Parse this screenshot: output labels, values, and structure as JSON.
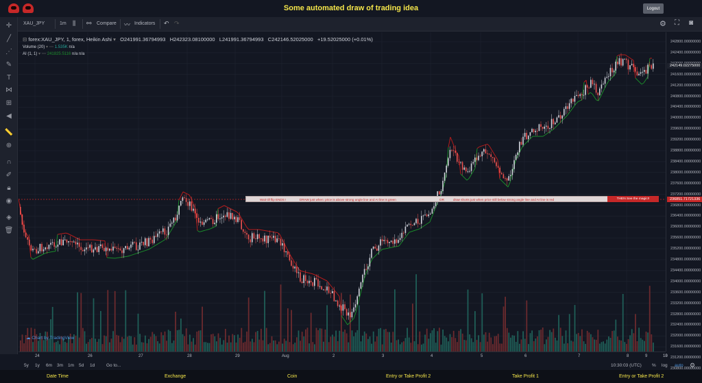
{
  "header": {
    "title": "Some automated draw of trading idea",
    "logout_label": "Logout",
    "logo_icons": [
      "ninja-mask-icon",
      "ninja-mask-icon"
    ]
  },
  "toolbar": {
    "symbol": "XAU_JPY",
    "interval": "1m",
    "compare_label": "Compare",
    "indicators_label": "Indicators"
  },
  "legend": {
    "main_title": "forex:XAU_JPY, 1, forex, Heikin Ashi",
    "open": "O241991.36794993",
    "high": "H242323.08100000",
    "low": "L241991.36794993",
    "close": "C242146.52025000",
    "change": "+19.52025000 (+0.01%)",
    "volume_label": "Volume (20)",
    "volume_value": "1.535K",
    "volume_na": "n/a",
    "ai_label": "AI (1, 1)",
    "ai_value": "241825.5116",
    "ai_na1": "n/a",
    "ai_na2": "n/a"
  },
  "annotation": {
    "part1": "Wait till flip ENDS  !",
    "part2": "DRAW just when:  price is above strong angle line and AI line is green",
    "part3": "OR",
    "part4": "draw shorts just when price still below strong angle line and AI line is red",
    "magic": "THEN See the magic!!"
  },
  "price_axis": {
    "ticks": [
      "242800.00000000",
      "242400.00000000",
      "242000.00000000",
      "241600.00000000",
      "241200.00000000",
      "240800.00000000",
      "240400.00000000",
      "240000.00000000",
      "239600.00000000",
      "239200.00000000",
      "238800.00000000",
      "238400.00000000",
      "238000.00000000",
      "237600.00000000",
      "237200.00000000",
      "236800.00000000",
      "236400.00000000",
      "236000.00000000",
      "235600.00000000",
      "235200.00000000",
      "234800.00000000",
      "234400.00000000",
      "234000.00000000",
      "233600.00000000",
      "233200.00000000",
      "232800.00000000",
      "232400.00000000",
      "232000.00000000",
      "231600.00000000",
      "231200.00000000",
      "230800.00000000"
    ],
    "current_price": "242149.02275000",
    "line_price": "236851.71721336"
  },
  "time_axis": {
    "ticks": [
      "24",
      "26",
      "27",
      "28",
      "29",
      "Aug",
      "2",
      "3",
      "4",
      "5",
      "6",
      "7",
      "8",
      "9",
      "10",
      "13"
    ]
  },
  "watermark": "Chart by TradingView",
  "bottom_toolbar": {
    "ranges": [
      "5y",
      "1y",
      "6m",
      "3m",
      "1m",
      "5d",
      "1d"
    ],
    "goto": "Go to...",
    "time": "10:30:03 (UTC)",
    "percent": "%",
    "log": "log",
    "auto": "auto"
  },
  "footer": {
    "items": [
      "Date Time",
      "Exchange",
      "Coin",
      "Entry or Take Profit 2",
      "Take Profit 1",
      "Entry or Take Profit 2"
    ]
  },
  "colors": {
    "up": "#d1d4dc",
    "down": "#ef5350",
    "ai_green": "#1b8c2b",
    "ai_red": "#b71c1c",
    "vol_up": "#26a69a",
    "vol_down": "#ef5350",
    "title_yellow": "#f5e64a"
  }
}
